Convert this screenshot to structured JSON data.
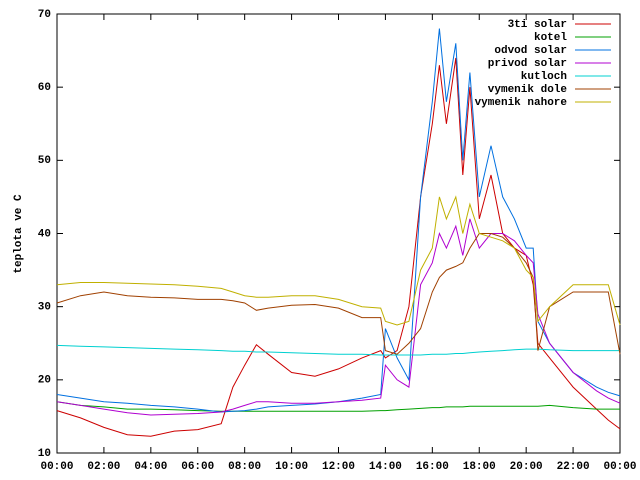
{
  "chart_data": {
    "type": "line",
    "y_label": "teplota ve C",
    "x": [
      0,
      1,
      2,
      3,
      4,
      5,
      6,
      7,
      7.5,
      8,
      8.5,
      9,
      10,
      11,
      12,
      13,
      13.8,
      14,
      14.5,
      15,
      15.5,
      16,
      16.3,
      16.6,
      17,
      17.3,
      17.6,
      18,
      18.5,
      19,
      19.5,
      20,
      20.3,
      20.5,
      21,
      22,
      23,
      23.5,
      24
    ],
    "xlim": [
      0,
      24
    ],
    "xticks": [
      {
        "value": 0,
        "label": "00:00"
      },
      {
        "value": 2,
        "label": "02:00"
      },
      {
        "value": 4,
        "label": "04:00"
      },
      {
        "value": 6,
        "label": "06:00"
      },
      {
        "value": 8,
        "label": "08:00"
      },
      {
        "value": 10,
        "label": "10:00"
      },
      {
        "value": 12,
        "label": "12:00"
      },
      {
        "value": 14,
        "label": "14:00"
      },
      {
        "value": 16,
        "label": "16:00"
      },
      {
        "value": 18,
        "label": "18:00"
      },
      {
        "value": 20,
        "label": "20:00"
      },
      {
        "value": 22,
        "label": "22:00"
      },
      {
        "value": 24,
        "label": "00:00"
      }
    ],
    "ylim": [
      10,
      70
    ],
    "yticks": [
      10,
      20,
      30,
      40,
      50,
      60,
      70
    ],
    "grid": false,
    "legend": "top-right",
    "series": [
      {
        "name": "3ti solar",
        "color": "#cc0000",
        "values": [
          15.8,
          14.8,
          13.5,
          12.5,
          12.3,
          13,
          13.2,
          14,
          19,
          22,
          24.8,
          23.5,
          21,
          20.5,
          21.5,
          23,
          24,
          23,
          24,
          30,
          45,
          55,
          63,
          55,
          64,
          48,
          60,
          42,
          48,
          40,
          38,
          37,
          33,
          25,
          23,
          19,
          16,
          14.5,
          13.3
        ]
      },
      {
        "name": "kotel",
        "color": "#00a000",
        "values": [
          17,
          16.5,
          16.3,
          16,
          16,
          15.9,
          15.8,
          15.7,
          15.7,
          15.7,
          15.7,
          15.7,
          15.7,
          15.7,
          15.7,
          15.7,
          15.8,
          15.8,
          15.9,
          16,
          16.1,
          16.2,
          16.2,
          16.3,
          16.3,
          16.3,
          16.4,
          16.4,
          16.4,
          16.4,
          16.4,
          16.4,
          16.4,
          16.4,
          16.5,
          16.2,
          16,
          16,
          16
        ]
      },
      {
        "name": "odvod solar",
        "color": "#0070e0",
        "values": [
          18,
          17.5,
          17,
          16.8,
          16.5,
          16.3,
          16,
          15.6,
          15.7,
          15.8,
          16,
          16.3,
          16.5,
          16.7,
          17,
          17.5,
          18,
          27,
          23,
          20,
          45,
          58,
          68,
          58,
          66,
          50,
          62,
          45,
          52,
          45,
          42,
          38,
          38,
          28,
          25,
          21,
          19,
          18.3,
          17.8
        ]
      },
      {
        "name": "privod solar",
        "color": "#b000d0",
        "values": [
          17,
          16.5,
          16,
          15.5,
          15.2,
          15.3,
          15.4,
          15.6,
          16,
          16.5,
          17,
          17,
          16.8,
          16.8,
          17,
          17.2,
          17.5,
          22,
          20,
          19,
          33,
          36,
          40,
          38,
          41,
          37,
          42,
          38,
          40,
          40,
          39,
          37,
          36,
          29,
          25,
          21,
          18.5,
          17.5,
          16.8
        ]
      },
      {
        "name": "kutloch",
        "color": "#00d0d0",
        "values": [
          24.7,
          24.6,
          24.5,
          24.4,
          24.3,
          24.2,
          24.1,
          24,
          23.9,
          23.9,
          23.8,
          23.8,
          23.7,
          23.6,
          23.5,
          23.5,
          23.4,
          23.4,
          23.4,
          23.4,
          23.4,
          23.5,
          23.5,
          23.5,
          23.6,
          23.6,
          23.7,
          23.8,
          23.9,
          24,
          24.1,
          24.2,
          24.2,
          24.2,
          24.1,
          24,
          24,
          24,
          24
        ]
      },
      {
        "name": "vymenik dole",
        "color": "#a04000",
        "values": [
          30.5,
          31.5,
          32,
          31.5,
          31.3,
          31.2,
          31,
          31,
          30.8,
          30.5,
          29.5,
          29.8,
          30.2,
          30.3,
          29.8,
          28.5,
          28.5,
          24,
          23.5,
          25,
          27,
          32,
          34,
          35,
          35.5,
          36,
          38,
          40,
          40,
          39.5,
          38,
          36,
          34,
          24,
          30,
          32,
          32,
          32,
          23.5
        ]
      },
      {
        "name": "vymenik nahore",
        "color": "#c0b000",
        "values": [
          33,
          33.3,
          33.3,
          33.2,
          33.1,
          33,
          32.8,
          32.5,
          32,
          31.5,
          31.3,
          31.3,
          31.5,
          31.5,
          31,
          30,
          29.8,
          28,
          27.5,
          28,
          35,
          38,
          45,
          42,
          45,
          40,
          44,
          40,
          39.5,
          39,
          38,
          35,
          34,
          28,
          30,
          33,
          33,
          33,
          27.5
        ]
      }
    ]
  }
}
